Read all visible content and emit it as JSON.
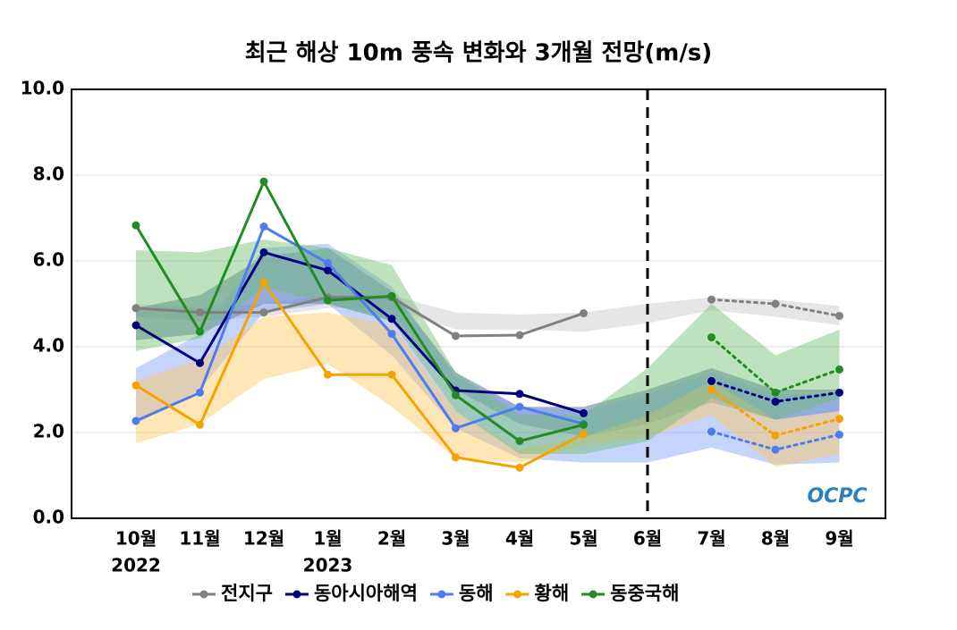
{
  "chart_data": {
    "type": "line",
    "title": "최근 해상 10m 풍속 변화와 3개월 전망(m/s)",
    "categories": [
      "10월",
      "11월",
      "12월",
      "1월",
      "2월",
      "3월",
      "4월",
      "5월",
      "6월",
      "7월",
      "8월",
      "9월"
    ],
    "year_labels": [
      "2022",
      null,
      null,
      "2023",
      null,
      null,
      null,
      null,
      null,
      null,
      null,
      null
    ],
    "ylim": [
      0,
      10
    ],
    "yticks": [
      {
        "value": 0,
        "label": "0.0"
      },
      {
        "value": 2,
        "label": "2.0"
      },
      {
        "value": 4,
        "label": "4.0"
      },
      {
        "value": 6,
        "label": "6.0"
      },
      {
        "value": 8,
        "label": "8.0"
      },
      {
        "value": 10,
        "label": "10.0"
      }
    ],
    "grid": true,
    "divider_at": 8,
    "forecast_from": 9,
    "legend": "bottom",
    "logo": "OCPC",
    "series": [
      {
        "name": "전지구",
        "color": "#808080",
        "band_color": "#c8c8c8",
        "values": [
          4.9,
          4.8,
          4.8,
          5.15,
          5.15,
          4.25,
          4.27,
          4.78,
          null,
          5.1,
          5.0,
          4.72
        ],
        "band_low": [
          4.7,
          4.6,
          4.7,
          4.9,
          4.9,
          4.4,
          4.4,
          4.35,
          4.55,
          4.85,
          4.7,
          4.5
        ],
        "band_high": [
          5.0,
          4.9,
          5.0,
          5.2,
          5.2,
          4.8,
          4.75,
          4.8,
          5.0,
          5.15,
          5.1,
          4.95
        ]
      },
      {
        "name": "동아시아해역",
        "color": "#000080",
        "band_color": "#3b5c8c",
        "values": [
          4.5,
          3.62,
          6.2,
          5.78,
          4.65,
          2.98,
          2.9,
          2.45,
          null,
          3.2,
          2.72,
          2.93
        ],
        "band_low": [
          4.15,
          4.3,
          5.0,
          5.0,
          4.6,
          3.0,
          2.2,
          1.9,
          2.2,
          2.7,
          2.3,
          2.5
        ],
        "band_high": [
          4.9,
          5.2,
          6.1,
          6.3,
          5.3,
          3.4,
          2.6,
          2.6,
          3.0,
          3.5,
          3.0,
          3.0
        ]
      },
      {
        "name": "동해",
        "color": "#4c7cf0",
        "band_color": "#7f9ff5",
        "values": [
          2.27,
          2.93,
          6.8,
          5.95,
          4.3,
          2.1,
          2.6,
          2.2,
          null,
          2.02,
          1.6,
          1.95
        ],
        "band_low": [
          2.2,
          3.0,
          4.8,
          5.0,
          3.8,
          2.1,
          1.4,
          1.3,
          1.3,
          1.65,
          1.25,
          1.3
        ],
        "band_high": [
          3.5,
          4.3,
          6.3,
          6.4,
          5.4,
          3.3,
          2.6,
          2.5,
          2.9,
          3.4,
          2.9,
          2.9
        ]
      },
      {
        "name": "황해",
        "color": "#f5a300",
        "band_color": "#ffc860",
        "values": [
          3.1,
          2.18,
          5.5,
          3.35,
          3.35,
          1.42,
          1.18,
          1.97,
          null,
          3.0,
          1.93,
          2.32
        ],
        "band_low": [
          1.75,
          2.2,
          3.25,
          3.6,
          2.6,
          1.4,
          1.3,
          1.7,
          1.9,
          2.4,
          1.2,
          1.5
        ],
        "band_high": [
          3.2,
          3.7,
          4.7,
          4.8,
          4.5,
          2.5,
          1.6,
          1.9,
          2.4,
          3.2,
          2.3,
          2.5
        ]
      },
      {
        "name": "동중국해",
        "color": "#228b22",
        "band_color": "#6fbf6f",
        "values": [
          6.83,
          4.35,
          7.85,
          5.08,
          5.18,
          2.87,
          1.8,
          2.18,
          null,
          4.22,
          2.93,
          3.47
        ],
        "band_low": [
          3.9,
          4.2,
          5.4,
          5.0,
          4.6,
          2.5,
          1.5,
          1.5,
          1.8,
          2.8,
          2.3,
          2.8
        ],
        "band_high": [
          6.25,
          6.2,
          6.5,
          6.3,
          5.9,
          3.4,
          2.4,
          2.4,
          3.5,
          5.0,
          3.8,
          4.4
        ]
      }
    ]
  }
}
